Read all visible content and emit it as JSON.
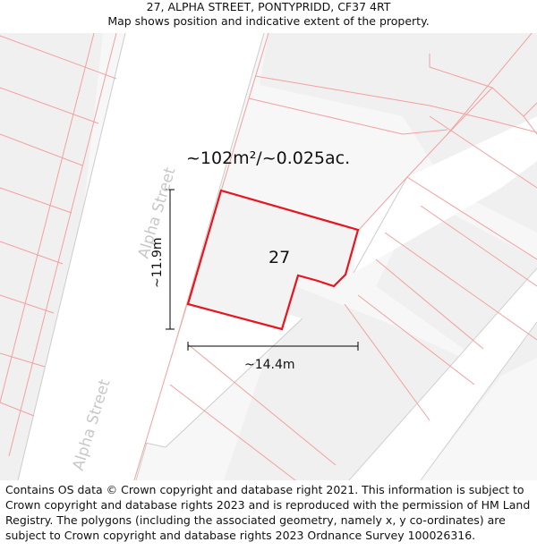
{
  "header": {
    "title": "27, ALPHA STREET, PONTYPRIDD, CF37 4RT",
    "subtitle": "Map shows position and indicative extent of the property."
  },
  "map": {
    "area_label": "~102m²/~0.025ac.",
    "plot_number": "27",
    "height_label": "~11.9m",
    "width_label": "~14.4m",
    "street_label_upper": "Alpha Street",
    "street_label_lower": "Alpha Street",
    "colors": {
      "boundary": "#e8141e",
      "parcel_line": "#f2a5a5",
      "building_fill": "#f2f2f2",
      "road_fill": "#ffffff",
      "road_edge": "#c8c8c8",
      "street_text": "#c8c8c8"
    }
  },
  "footer": {
    "text": "Contains OS data © Crown copyright and database right 2021. This information is subject to Crown copyright and database rights 2023 and is reproduced with the permission of HM Land Registry. The polygons (including the associated geometry, namely x, y co-ordinates) are subject to Crown copyright and database rights 2023 Ordnance Survey 100026316."
  }
}
